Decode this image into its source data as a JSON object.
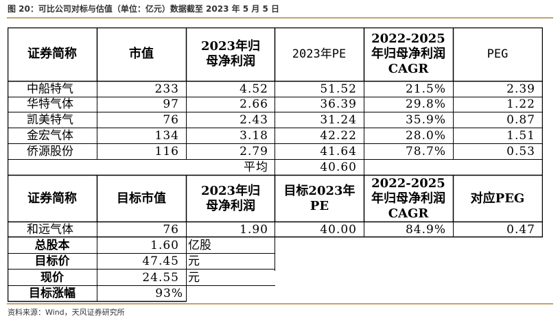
{
  "caption": "图 20：可比公司对标与估值（单位：亿元）数据截至 2023 年 5 月 5 日",
  "source": "资料来源：Wind，天风证券研究所",
  "colors": {
    "rule": "#c8a064",
    "border": "#000000"
  },
  "comp_table": {
    "headers": [
      "证券简称",
      "市值",
      "2023年归母净利润",
      "2023年PE",
      "2022-2025年归母净利润CAGR",
      "PEG"
    ],
    "rows": [
      {
        "name": "中船特气",
        "mv": "233",
        "np": "4.52",
        "pe": "51.52",
        "cagr": "21.5%",
        "peg": "2.39"
      },
      {
        "name": "华特气体",
        "mv": "97",
        "np": "2.66",
        "pe": "36.39",
        "cagr": "29.8%",
        "peg": "1.22"
      },
      {
        "name": "凯美特气",
        "mv": "76",
        "np": "2.43",
        "pe": "31.24",
        "cagr": "35.9%",
        "peg": "0.87"
      },
      {
        "name": "金宏气体",
        "mv": "134",
        "np": "3.18",
        "pe": "42.22",
        "cagr": "28.0%",
        "peg": "1.51"
      },
      {
        "name": "侨源股份",
        "mv": "116",
        "np": "2.79",
        "pe": "41.64",
        "cagr": "78.7%",
        "peg": "0.53"
      }
    ],
    "avg_label": "平均",
    "avg_value": "40.60"
  },
  "target_table": {
    "headers": [
      "证券简称",
      "目标市值",
      "2023年归母净利润",
      "目标2023年PE",
      "2022-2025年归母净利润CAGR",
      "对应PEG"
    ],
    "row": {
      "name": "和远气体",
      "mv": "76",
      "np": "1.90",
      "pe": "40.00",
      "cagr": "84.9%",
      "peg": "0.47"
    }
  },
  "summary": [
    {
      "label": "总股本",
      "value": "1.60",
      "unit": "亿股"
    },
    {
      "label": "目标价",
      "value": "47.45",
      "unit": "元"
    },
    {
      "label": "现价",
      "value": "24.55",
      "unit": "元"
    },
    {
      "label": "目标涨幅",
      "value": "93%",
      "unit": ""
    }
  ]
}
